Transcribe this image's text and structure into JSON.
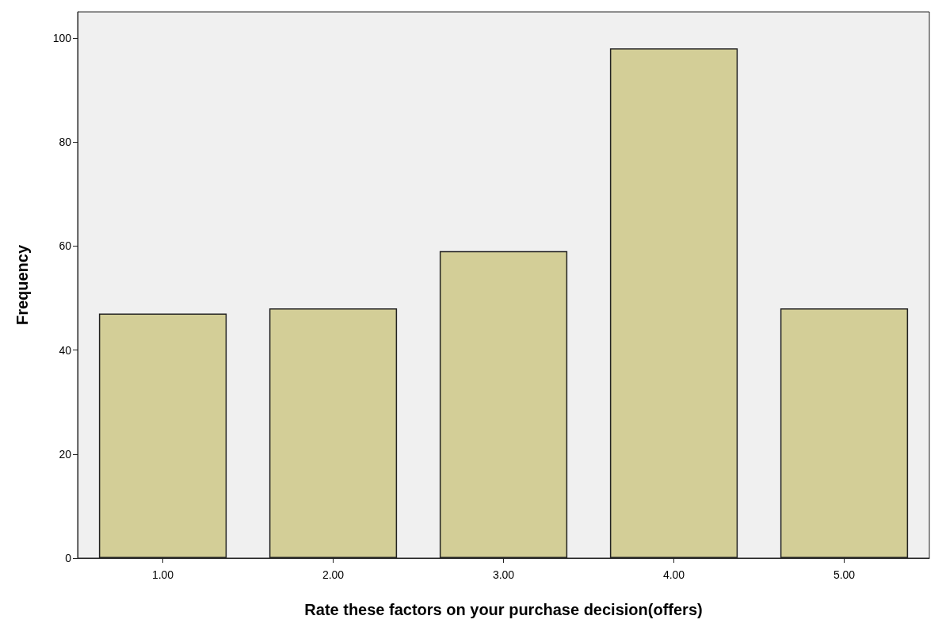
{
  "chart_data": {
    "type": "bar",
    "xlabel": "Rate these factors on your purchase decision(offers)",
    "ylabel": "Frequency",
    "categories": [
      "1.00",
      "2.00",
      "3.00",
      "4.00",
      "5.00"
    ],
    "values": [
      47,
      48,
      59,
      98,
      48
    ],
    "color": "#d3ce97",
    "ylim": [
      0,
      105
    ],
    "yticks": [
      0,
      20,
      40,
      60,
      80,
      100
    ],
    "grid": false
  }
}
